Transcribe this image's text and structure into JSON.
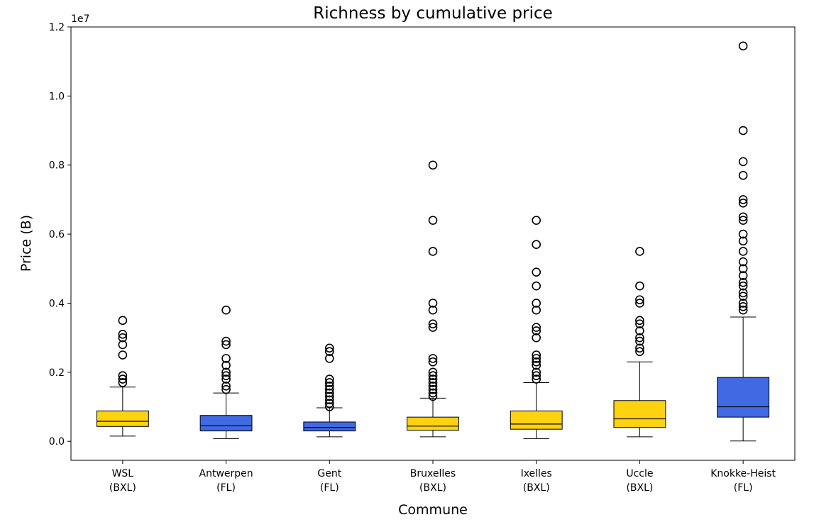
{
  "chart_data": {
    "type": "box",
    "title": "Richness by cumulative price",
    "xlabel": "Commune",
    "ylabel": "Price (B)",
    "y_multiplier": "1e7",
    "ylim": [
      -0.055,
      1.2
    ],
    "yticks": [
      0.0,
      0.2,
      0.4,
      0.6,
      0.8,
      1.0,
      1.2
    ],
    "ytick_labels": [
      "0.0",
      "0.2",
      "0.4",
      "0.6",
      "0.8",
      "1.0",
      "1.2"
    ],
    "grid": false,
    "colors": {
      "BXL": "#FFD20F",
      "FL": "#4169E1"
    },
    "categories": [
      {
        "line1": "WSL",
        "line2": "(BXL)",
        "region": "BXL",
        "whisker_low": 0.015,
        "q1": 0.043,
        "median": 0.058,
        "q3": 0.088,
        "whisker_high": 0.157,
        "outliers": [
          0.17,
          0.18,
          0.19,
          0.25,
          0.28,
          0.3,
          0.31,
          0.35
        ]
      },
      {
        "line1": "Antwerpen",
        "line2": "(FL)",
        "region": "FL",
        "whisker_low": 0.008,
        "q1": 0.03,
        "median": 0.045,
        "q3": 0.075,
        "whisker_high": 0.14,
        "outliers": [
          0.15,
          0.16,
          0.18,
          0.19,
          0.2,
          0.22,
          0.24,
          0.28,
          0.29,
          0.38
        ]
      },
      {
        "line1": "Gent",
        "line2": "(FL)",
        "region": "FL",
        "whisker_low": 0.013,
        "q1": 0.03,
        "median": 0.04,
        "q3": 0.056,
        "whisker_high": 0.097,
        "outliers": [
          0.1,
          0.11,
          0.12,
          0.13,
          0.14,
          0.15,
          0.16,
          0.17,
          0.18,
          0.24,
          0.26,
          0.27
        ]
      },
      {
        "line1": "Bruxelles",
        "line2": "(BXL)",
        "region": "BXL",
        "whisker_low": 0.013,
        "q1": 0.032,
        "median": 0.044,
        "q3": 0.07,
        "whisker_high": 0.125,
        "outliers": [
          0.13,
          0.14,
          0.15,
          0.16,
          0.17,
          0.18,
          0.19,
          0.2,
          0.23,
          0.24,
          0.33,
          0.34,
          0.38,
          0.4,
          0.55,
          0.64,
          0.8
        ]
      },
      {
        "line1": "Ixelles",
        "line2": "(BXL)",
        "region": "BXL",
        "whisker_low": 0.008,
        "q1": 0.035,
        "median": 0.05,
        "q3": 0.088,
        "whisker_high": 0.17,
        "outliers": [
          0.18,
          0.19,
          0.2,
          0.22,
          0.23,
          0.24,
          0.25,
          0.3,
          0.32,
          0.33,
          0.38,
          0.4,
          0.45,
          0.49,
          0.57,
          0.64
        ]
      },
      {
        "line1": "Uccle",
        "line2": "(BXL)",
        "region": "BXL",
        "whisker_low": 0.013,
        "q1": 0.04,
        "median": 0.065,
        "q3": 0.118,
        "whisker_high": 0.23,
        "outliers": [
          0.26,
          0.27,
          0.29,
          0.3,
          0.32,
          0.34,
          0.35,
          0.4,
          0.41,
          0.45,
          0.55
        ]
      },
      {
        "line1": "Knokke-Heist",
        "line2": "(FL)",
        "region": "FL",
        "whisker_low": 0.001,
        "q1": 0.07,
        "median": 0.1,
        "q3": 0.185,
        "whisker_high": 0.36,
        "outliers": [
          0.38,
          0.39,
          0.4,
          0.42,
          0.43,
          0.45,
          0.46,
          0.48,
          0.5,
          0.52,
          0.55,
          0.58,
          0.6,
          0.64,
          0.65,
          0.69,
          0.7,
          0.77,
          0.81,
          0.9,
          1.145
        ]
      }
    ]
  }
}
